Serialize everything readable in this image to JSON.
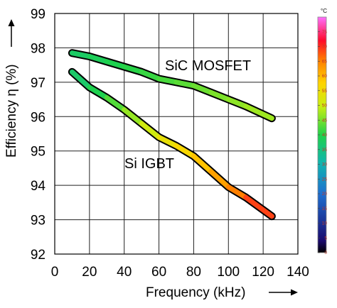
{
  "chart_data": {
    "type": "line",
    "xlabel": "Frequency (kHz)",
    "ylabel": "Efficiency η (%)",
    "xlim": [
      0,
      140
    ],
    "ylim": [
      92,
      99
    ],
    "xticks": [
      0,
      20,
      40,
      60,
      80,
      100,
      120,
      140
    ],
    "yticks": [
      92,
      93,
      94,
      95,
      96,
      97,
      98,
      99
    ],
    "grid": true,
    "series": [
      {
        "name": "SiC MOSFET",
        "x": [
          10,
          20,
          30,
          40,
          50,
          60,
          70,
          80,
          90,
          100,
          110,
          125
        ],
        "y": [
          97.85,
          97.75,
          97.6,
          97.45,
          97.3,
          97.1,
          97.0,
          96.9,
          96.7,
          96.5,
          96.3,
          95.95
        ],
        "temperature": [
          37,
          38,
          39,
          40,
          41,
          42,
          43,
          44,
          45,
          46,
          47,
          48
        ]
      },
      {
        "name": "Si IGBT",
        "x": [
          10,
          20,
          30,
          40,
          50,
          60,
          70,
          80,
          90,
          100,
          110,
          125
        ],
        "y": [
          97.3,
          96.85,
          96.55,
          96.2,
          95.8,
          95.4,
          95.15,
          94.85,
          94.4,
          93.95,
          93.65,
          93.1
        ],
        "temperature": [
          36,
          38,
          41,
          45,
          49,
          53,
          56,
          58,
          61,
          64,
          67,
          71
        ]
      }
    ],
    "colorbar": {
      "unit": "°C",
      "ticks": [
        0,
        5,
        10,
        15,
        20,
        25,
        30,
        35,
        40,
        45,
        50,
        55,
        60,
        65,
        70,
        75
      ],
      "range": [
        0,
        80
      ]
    }
  }
}
